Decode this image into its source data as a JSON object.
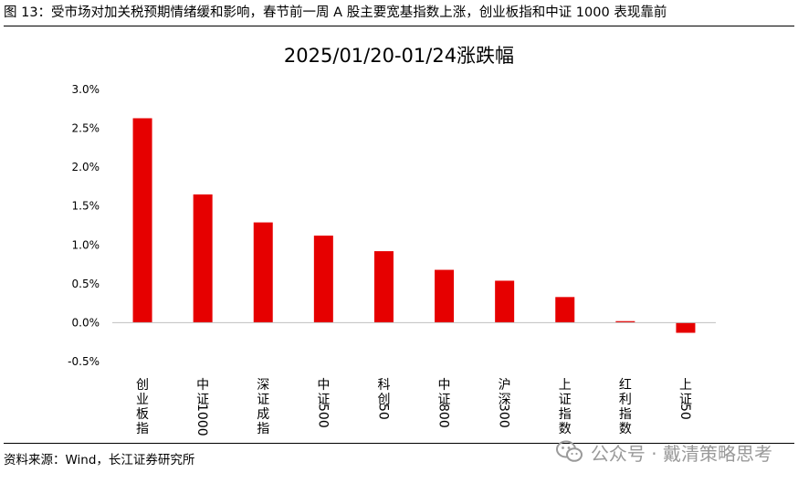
{
  "header": {
    "figure_title": "图 13：受市场对加关税预期情绪缓和影响，春节前一周 A 股主要宽基指数上涨，创业板指和中证 1000 表现靠前"
  },
  "footer": {
    "source": "资料来源：Wind，长江证券研究所"
  },
  "watermark": {
    "text": "公众号 · 戴清策略思考",
    "icon": "wechat-icon"
  },
  "chart_data": {
    "type": "bar",
    "title": "2025/01/20-01/24涨跌幅",
    "xlabel": "",
    "ylabel": "",
    "categories": [
      "创业板指",
      "中证1000",
      "深证成指",
      "中证500",
      "科创50",
      "中证800",
      "沪深300",
      "上证指数",
      "红利指数",
      "上证50"
    ],
    "values": [
      2.63,
      1.65,
      1.29,
      1.12,
      0.92,
      0.68,
      0.54,
      0.33,
      0.02,
      -0.13
    ],
    "value_unit": "%",
    "ylim": [
      -0.5,
      3.0
    ],
    "yticks": [
      3.0,
      2.5,
      2.0,
      1.5,
      1.0,
      0.5,
      0.0,
      -0.5
    ],
    "ytick_labels": [
      "3.0%",
      "2.5%",
      "2.0%",
      "1.5%",
      "1.0%",
      "0.5%",
      "0.0%",
      "-0.5%"
    ],
    "grid": false,
    "legend": "none",
    "bar_color": "#e60000"
  }
}
